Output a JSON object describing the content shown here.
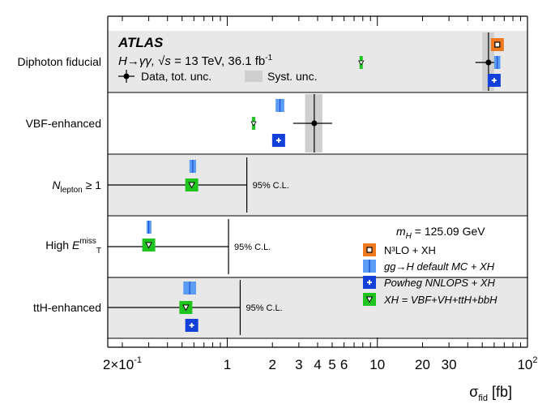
{
  "chart_data": {
    "type": "scatter",
    "experiment": "ATLAS",
    "process_main": "H→γγ,",
    "process_sqrt": "√s",
    "process_energy": "= 13 TeV,",
    "process_lumi": "36.1 fb",
    "process_lumi_exp": "-1",
    "legend_top": [
      {
        "key": "data",
        "label": "Data, tot. unc."
      },
      {
        "key": "syst",
        "label": "Syst. unc."
      }
    ],
    "mass_label_m": "m",
    "mass_label_sub": "H",
    "mass_label_value": "= 125.09 GeV",
    "legend_right": [
      {
        "key": "n3lo",
        "label": "N³LO + XH",
        "color": "#f07820"
      },
      {
        "key": "ggh_default",
        "label": "gg→H default MC + XH",
        "color": "#5b9cf5"
      },
      {
        "key": "powheg",
        "label": "Powheg NNLOPS + XH",
        "color": "#1240d8"
      },
      {
        "key": "xh",
        "label": "XH = VBF+VH+ttH+bbH",
        "color": "#1fc41f"
      }
    ],
    "xscale": "log",
    "xlim": [
      0.16,
      100
    ],
    "xlabel": "σ",
    "xlabel_sub": "fid",
    "xlabel_unit": "[fb]",
    "ticks_major": [
      {
        "value": 0.2,
        "label": "2×10",
        "exp": "-1"
      },
      {
        "value": 1,
        "label": "1"
      },
      {
        "value": 2,
        "label": "2"
      },
      {
        "value": 3,
        "label": "3"
      },
      {
        "value": 4,
        "label": "4"
      },
      {
        "value": 5,
        "label": "5"
      },
      {
        "value": 6,
        "label": "6"
      },
      {
        "value": 10,
        "label": "10"
      },
      {
        "value": 20,
        "label": "20"
      },
      {
        "value": 30,
        "label": "30"
      },
      {
        "value": 100,
        "label": "10",
        "exp": "2"
      }
    ],
    "categories": [
      {
        "label": "Diphoton fiducial",
        "shaded": true,
        "data": {
          "value": 55,
          "tot_lo": 45,
          "tot_hi": 65,
          "syst_lo": 50,
          "syst_hi": 60
        },
        "n3lo": 63,
        "ggh_default": {
          "lo": 60,
          "hi": 66
        },
        "powheg": 60,
        "xh": 7.8
      },
      {
        "label": "VBF-enhanced",
        "shaded": false,
        "data": {
          "value": 3.8,
          "tot_lo": 2.75,
          "tot_hi": 5.0,
          "syst_lo": 3.3,
          "syst_hi": 4.3
        },
        "ggh_default": {
          "lo": 2.1,
          "hi": 2.4
        },
        "powheg": 2.2,
        "xh": 1.5
      },
      {
        "label": "N",
        "label_sub": "lepton",
        "label_rest": " ≥ 1",
        "shaded": true,
        "limit": 1.35,
        "limit_label": "95% C.L.",
        "ggh_default": {
          "lo": 0.56,
          "hi": 0.62
        },
        "xh": 0.58
      },
      {
        "label": "High E",
        "label_sup": "miss",
        "label_sub": "T",
        "shaded": false,
        "limit": 1.02,
        "limit_label": "95% C.L.",
        "ggh_default": {
          "lo": 0.29,
          "hi": 0.31
        },
        "xh": 0.3
      },
      {
        "label": "ttH-enhanced",
        "shaded": true,
        "limit": 1.22,
        "limit_label": "95% C.L.",
        "ggh_default": {
          "lo": 0.51,
          "hi": 0.62
        },
        "powheg": 0.58,
        "xh": 0.53
      }
    ]
  }
}
